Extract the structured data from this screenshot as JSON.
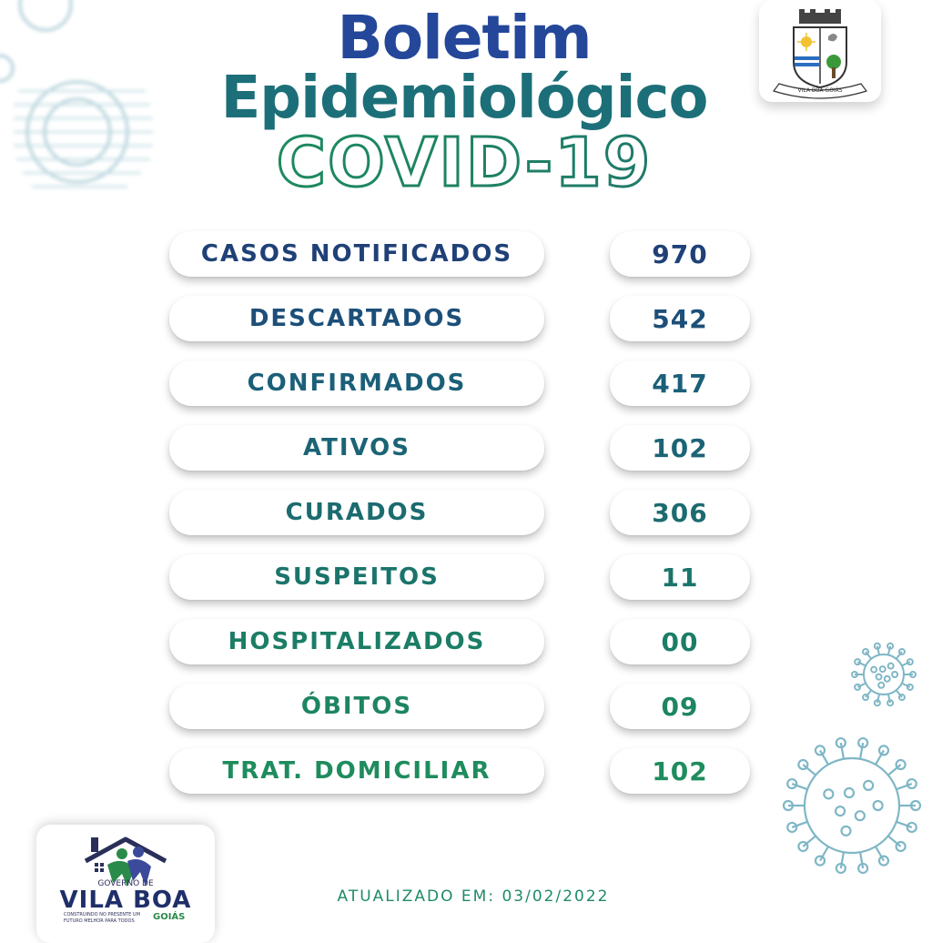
{
  "title": {
    "line1": "Boletim",
    "line2": "Epidemiológico",
    "line3": "COVID-19"
  },
  "colors": {
    "blue": "#24479a",
    "teal": "#1c5f74",
    "green": "#1e8a5e",
    "shadow": "#cccccc"
  },
  "stats": [
    {
      "label": "CASOS NOTIFICADOS",
      "value": "970",
      "color": "#1f4177"
    },
    {
      "label": "DESCARTADOS",
      "value": "542",
      "color": "#1c4f79"
    },
    {
      "label": "CONFIRMADOS",
      "value": "417",
      "color": "#1b5f78"
    },
    {
      "label": "ATIVOS",
      "value": "102",
      "color": "#1b6475"
    },
    {
      "label": "CURADOS",
      "value": "306",
      "color": "#1b6b70"
    },
    {
      "label": "SUSPEITOS",
      "value": "11",
      "color": "#1b746b"
    },
    {
      "label": "HOSPITALIZADOS",
      "value": "00",
      "color": "#1c7d66"
    },
    {
      "label": "ÓBITOS",
      "value": "09",
      "color": "#1d8562"
    },
    {
      "label": "TRAT. DOMICILIAR",
      "value": "102",
      "color": "#1e8c5d"
    }
  ],
  "crest": {
    "icon": "municipal-coat-of-arms",
    "ribbon_text": "VILA BOA GOIÁS"
  },
  "footer_logo": {
    "icon": "house-people-logo",
    "line1": "GOVERNO DE",
    "line2": "VILA BOA",
    "line3": "GOIÁS",
    "tagline1": "CONSTRUINDO NO PRESENTE UM",
    "tagline2": "FUTURO MELHOR PARA TODOS"
  },
  "updated": "ATUALIZADO EM: 03/02/2022"
}
